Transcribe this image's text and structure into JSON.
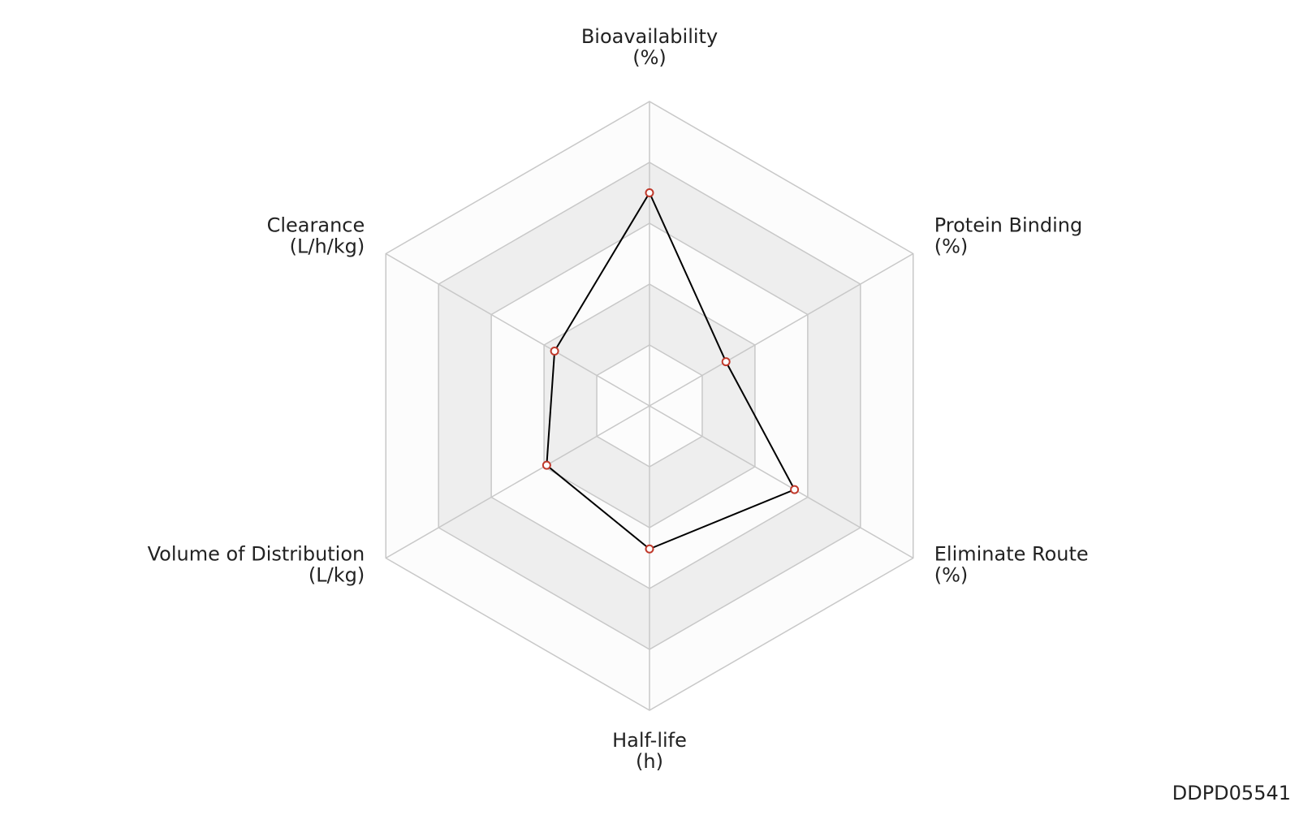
{
  "chart_data": {
    "type": "radar",
    "axes": [
      {
        "name": "Bioavailability",
        "unit": "(%)"
      },
      {
        "name": "Protein Binding",
        "unit": "(%)"
      },
      {
        "name": "Eliminate Route",
        "unit": "(%)"
      },
      {
        "name": "Half-life",
        "unit": "(h)"
      },
      {
        "name": "Volume of Distribution",
        "unit": "(L/kg)"
      },
      {
        "name": "Clearance",
        "unit": "(L/h/kg)"
      }
    ],
    "series": [
      {
        "color": "#000000",
        "marker_color": "#c0392b",
        "values": [
          0.7,
          0.29,
          0.55,
          0.47,
          0.39,
          0.36
        ]
      }
    ],
    "rlim": [
      0,
      1
    ],
    "rticks": [
      0.2,
      0.4,
      0.6,
      0.8,
      1
    ],
    "band_colors": [
      "#ffffff",
      "#eeeeee"
    ],
    "watermark": "DDPD05541"
  }
}
